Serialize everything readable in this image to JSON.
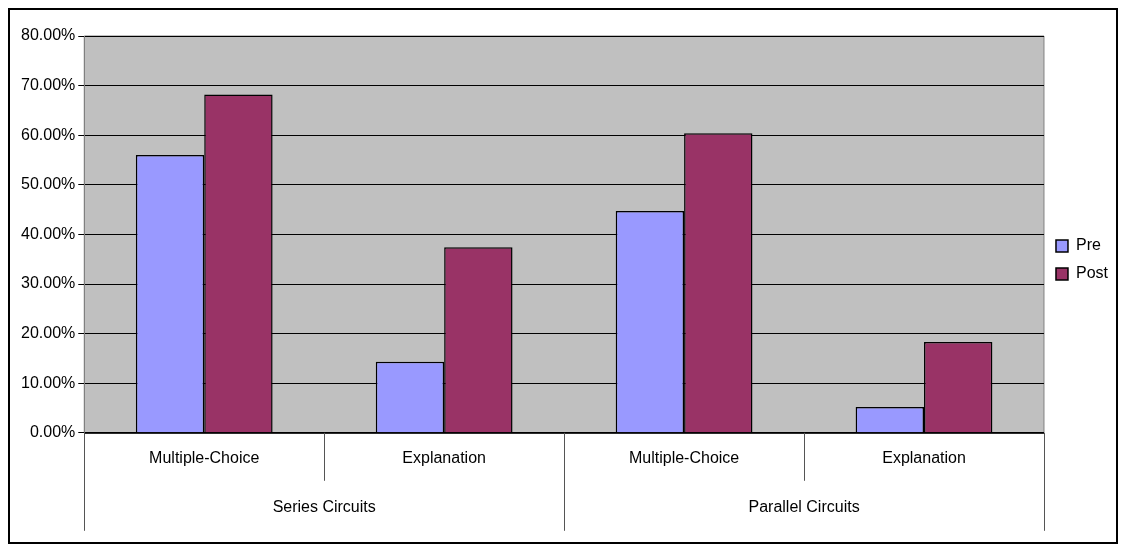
{
  "chart_data": {
    "type": "bar",
    "categories": [
      "Multiple-Choice",
      "Explanation",
      "Multiple-Choice",
      "Explanation"
    ],
    "annotations": [
      "Series Circuits",
      "Parallel Circuits"
    ],
    "series": [
      {
        "name": "Pre",
        "color": "#9999ff",
        "values": [
          56.0,
          14.3,
          44.7,
          5.2
        ]
      },
      {
        "name": "Post",
        "color": "#993366",
        "values": [
          68.2,
          37.4,
          60.4,
          18.3
        ]
      }
    ],
    "ylim": [
      0,
      80
    ],
    "yticks": [
      {
        "value": 0,
        "label": "0.00%"
      },
      {
        "value": 10,
        "label": "10.00%"
      },
      {
        "value": 20,
        "label": "20.00%"
      },
      {
        "value": 30,
        "label": "30.00%"
      },
      {
        "value": 40,
        "label": "40.00%"
      },
      {
        "value": 50,
        "label": "50.00%"
      },
      {
        "value": 60,
        "label": "60.00%"
      },
      {
        "value": 70,
        "label": "70.00%"
      },
      {
        "value": 80,
        "label": "80.00%"
      }
    ],
    "grid": "y",
    "legend": "right"
  }
}
